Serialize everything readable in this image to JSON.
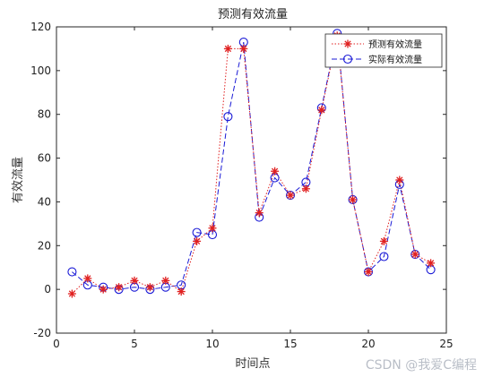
{
  "chart_data": {
    "type": "line",
    "title": "预测有效流量",
    "xlabel": "时间点",
    "ylabel": "有效流量",
    "xlim": [
      0,
      25
    ],
    "ylim": [
      -20,
      120
    ],
    "xticks": [
      0,
      5,
      10,
      15,
      20,
      25
    ],
    "yticks": [
      -20,
      0,
      20,
      40,
      60,
      80,
      100,
      120
    ],
    "x": [
      1,
      2,
      3,
      4,
      5,
      6,
      7,
      8,
      9,
      10,
      11,
      12,
      13,
      14,
      15,
      16,
      17,
      18,
      19,
      20,
      21,
      22,
      23,
      24
    ],
    "series": [
      {
        "name": "预测有效流量",
        "marker": "star",
        "line_style": "dotted",
        "color": "#e02020",
        "values": [
          -2,
          5,
          0,
          1,
          4,
          1,
          4,
          -1,
          22,
          28,
          110,
          110,
          35,
          54,
          43,
          46,
          82,
          116,
          41,
          8,
          22,
          50,
          16,
          12
        ]
      },
      {
        "name": "实际有效流量",
        "marker": "circle",
        "line_style": "dashed",
        "color": "#1a1ad6",
        "values": [
          8,
          2,
          1,
          0,
          1,
          0,
          1,
          2,
          26,
          25,
          79,
          113,
          33,
          51,
          43,
          49,
          83,
          117,
          41,
          8,
          15,
          48,
          16,
          9
        ]
      }
    ],
    "legend_position": "top-right",
    "grid": false
  },
  "watermark": "CSDN @我爱C编程"
}
